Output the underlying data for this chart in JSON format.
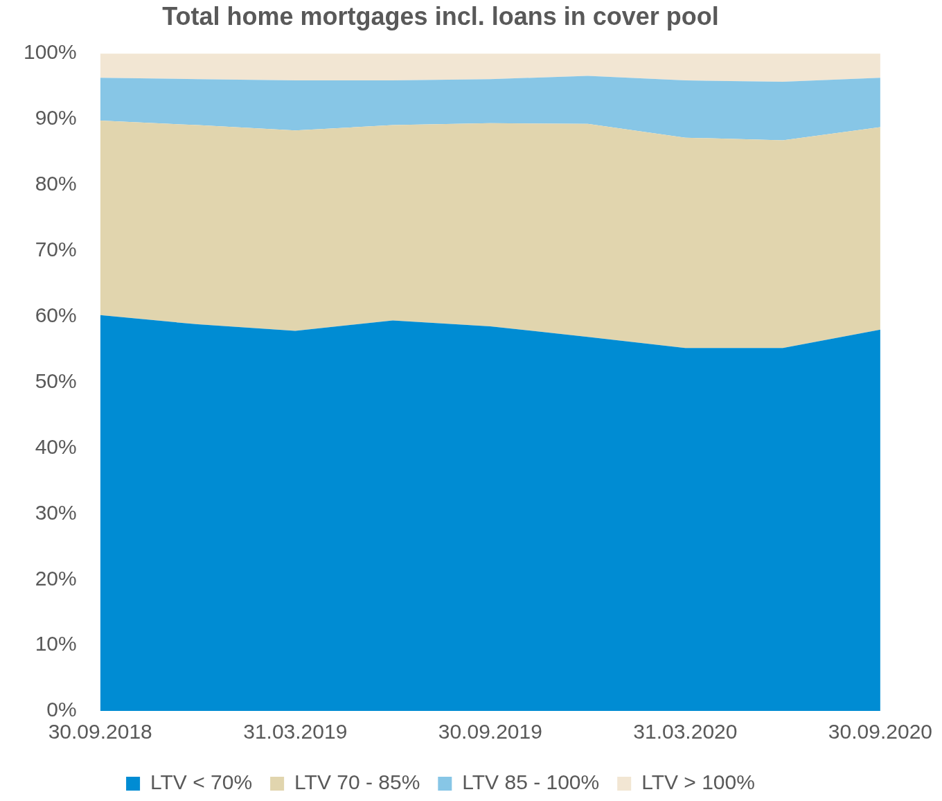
{
  "chart_data": {
    "type": "area",
    "title": "Total home mortgages incl. loans in cover pool",
    "stacked": true,
    "legend": "bottom",
    "grid": false,
    "categories": [
      "30.09.2018",
      null,
      "31.03.2019",
      null,
      "30.09.2019",
      null,
      "31.03.2020",
      null,
      "30.09.2020"
    ],
    "ylim": [
      0,
      100
    ],
    "yticks": [
      {
        "value": 0,
        "label": "0%"
      },
      {
        "value": 10,
        "label": "10%"
      },
      {
        "value": 20,
        "label": "20%"
      },
      {
        "value": 30,
        "label": "30%"
      },
      {
        "value": 40,
        "label": "40%"
      },
      {
        "value": 50,
        "label": "50%"
      },
      {
        "value": 60,
        "label": "60%"
      },
      {
        "value": 70,
        "label": "70%"
      },
      {
        "value": 80,
        "label": "80%"
      },
      {
        "value": 90,
        "label": "90%"
      },
      {
        "value": 100,
        "label": "100%"
      }
    ],
    "series": [
      {
        "name": "LTV < 70%",
        "color": "#008cd3",
        "values": [
          60.2,
          58.8,
          57.8,
          59.4,
          58.5,
          56.9,
          55.2,
          55.2,
          58.0
        ]
      },
      {
        "name": "LTV 70 - 85%",
        "color": "#e1d5ae",
        "values": [
          29.6,
          30.3,
          30.5,
          29.7,
          30.9,
          32.4,
          32.0,
          31.6,
          30.8
        ]
      },
      {
        "name": "LTV 85 - 100%",
        "color": "#87c6e6",
        "values": [
          6.5,
          7.0,
          7.6,
          6.8,
          6.7,
          7.3,
          8.7,
          8.9,
          7.5
        ]
      },
      {
        "name": "LTV > 100%",
        "color": "#f2e6d3",
        "values": [
          3.7,
          3.9,
          4.1,
          4.1,
          3.9,
          3.4,
          4.1,
          4.3,
          3.7
        ]
      }
    ]
  }
}
